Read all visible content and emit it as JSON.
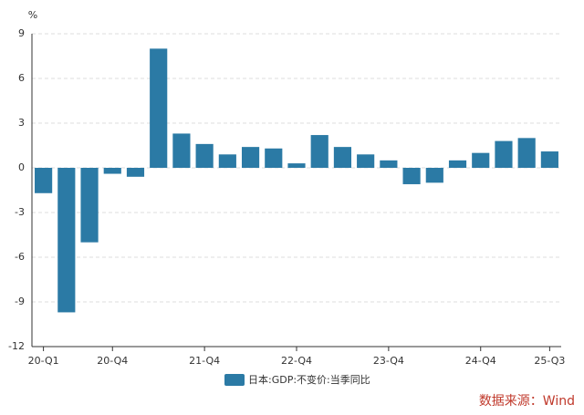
{
  "chart_data": {
    "type": "bar",
    "y_unit": "%",
    "categories": [
      "20-Q1",
      null,
      null,
      "20-Q4",
      null,
      null,
      null,
      "21-Q4",
      null,
      null,
      null,
      "22-Q4",
      null,
      null,
      null,
      "23-Q4",
      null,
      null,
      null,
      "24-Q4",
      null,
      null,
      "25-Q3"
    ],
    "series": [
      {
        "name": "日本:GDP:不变价:当季同比",
        "color": "#2b7aa5",
        "values": [
          -1.7,
          -9.7,
          -5.0,
          -0.4,
          -0.6,
          8.0,
          2.3,
          1.6,
          0.9,
          1.4,
          1.3,
          0.3,
          2.2,
          1.4,
          0.9,
          0.5,
          -1.1,
          -1.0,
          0.5,
          1.0,
          1.8,
          2.0,
          1.1
        ]
      }
    ],
    "ylim": [
      -12,
      9
    ],
    "yticks": [
      -12,
      -9,
      -6,
      -3,
      0,
      3,
      6,
      9
    ],
    "grid": true,
    "source": "数据来源：Wind"
  }
}
